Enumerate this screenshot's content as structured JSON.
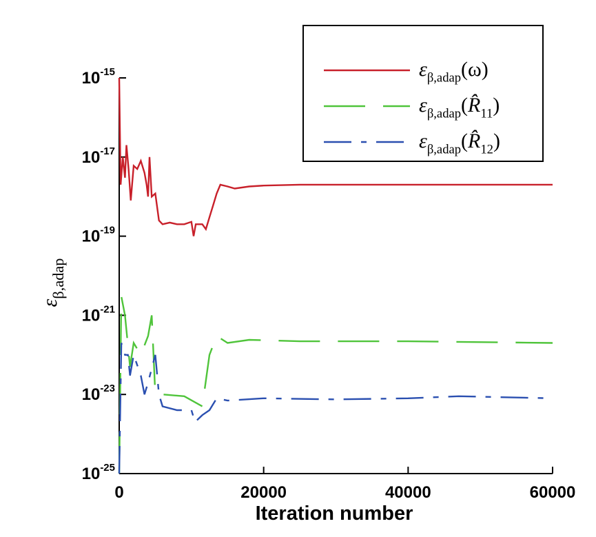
{
  "chart_data": {
    "type": "line",
    "xlabel": "Iteration number",
    "ylabel": [
      {
        "text": "ε"
      },
      {
        "text": "β,adap",
        "sub": true
      }
    ],
    "xlim": [
      0,
      60000
    ],
    "xticks": [
      0,
      20000,
      40000,
      60000
    ],
    "ylim": [
      1e-25,
      1e-15
    ],
    "log_y": true,
    "yticks": [
      {
        "value": 1e-15,
        "label": "10",
        "exponent": "-15"
      },
      {
        "value": 1e-17,
        "label": "10",
        "exponent": "-17"
      },
      {
        "value": 1e-19,
        "label": "10",
        "exponent": "-19"
      },
      {
        "value": 1e-21,
        "label": "10",
        "exponent": "-21"
      },
      {
        "value": 1e-23,
        "label": "10",
        "exponent": "-23"
      },
      {
        "value": 1e-25,
        "label": "10",
        "exponent": "-25"
      }
    ],
    "legend": "upper right",
    "series": [
      {
        "name": [
          {
            "text": "ε"
          },
          {
            "text": "β,adap",
            "sub": true
          },
          {
            "text": "(ω)"
          }
        ],
        "color": "#c8202a",
        "style": "solid",
        "x": [
          0,
          200,
          500,
          800,
          1000,
          1300,
          1600,
          2000,
          2500,
          3000,
          3500,
          3800,
          4000,
          4200,
          4500,
          5000,
          5500,
          6000,
          7000,
          8000,
          9000,
          10000,
          10300,
          10600,
          11500,
          12000,
          12500,
          13000,
          13500,
          14000,
          15000,
          16000,
          18000,
          20000,
          25000,
          40000,
          60000
        ],
        "values": [
          1e-15,
          2e-18,
          1e-17,
          3e-18,
          2e-17,
          5e-18,
          8e-19,
          6e-18,
          5e-18,
          8e-18,
          4e-18,
          2e-18,
          1e-18,
          1e-17,
          1e-18,
          1.2e-18,
          2.5e-19,
          2e-19,
          2.2e-19,
          2e-19,
          2e-19,
          2.3e-19,
          1e-19,
          2e-19,
          2e-19,
          1.5e-19,
          3e-19,
          6e-19,
          1.2e-18,
          2e-18,
          1.8e-18,
          1.6e-18,
          1.8e-18,
          1.9e-18,
          2e-18,
          2e-18,
          2e-18
        ]
      },
      {
        "name": [
          {
            "text": "ε"
          },
          {
            "text": "β,adap",
            "sub": true
          },
          {
            "text": "("
          },
          {
            "text": "R̂",
            "italic": true
          },
          {
            "text": "11",
            "sub": true
          },
          {
            "text": ")"
          }
        ],
        "color": "#4fc43a",
        "style": "dashed",
        "x": [
          0,
          300,
          800,
          1500,
          2000,
          3000,
          4000,
          4500,
          5000,
          6000,
          9000,
          11500,
          12500,
          13500,
          15000,
          18000,
          25000,
          40000,
          60000
        ],
        "values": [
          1e-25,
          3e-21,
          1e-21,
          5e-23,
          2e-22,
          1e-22,
          3e-22,
          1e-21,
          1e-23,
          1e-23,
          9e-24,
          5e-24,
          1e-22,
          3e-22,
          2e-22,
          2.4e-22,
          2.2e-22,
          2.2e-22,
          2e-22
        ]
      },
      {
        "name": [
          {
            "text": "ε"
          },
          {
            "text": "β,adap",
            "sub": true
          },
          {
            "text": "("
          },
          {
            "text": "R̂",
            "italic": true
          },
          {
            "text": "12",
            "sub": true
          },
          {
            "text": ")"
          }
        ],
        "color": "#2a4fb0",
        "style": "dashdot",
        "x": [
          0,
          300,
          800,
          1200,
          1500,
          2000,
          3000,
          3500,
          4000,
          5000,
          5500,
          6000,
          8000,
          10000,
          10500,
          11500,
          12500,
          13500,
          15000,
          20000,
          30000,
          40000,
          47000,
          60000
        ],
        "values": [
          1e-25,
          2e-22,
          1e-22,
          1e-22,
          3e-23,
          1e-22,
          3e-23,
          1e-23,
          2e-23,
          1e-22,
          1e-23,
          5e-24,
          4e-24,
          4e-24,
          2e-24,
          3e-24,
          4e-24,
          8e-24,
          7e-24,
          8e-24,
          7.5e-24,
          8e-24,
          9e-24,
          8e-24
        ]
      }
    ]
  }
}
